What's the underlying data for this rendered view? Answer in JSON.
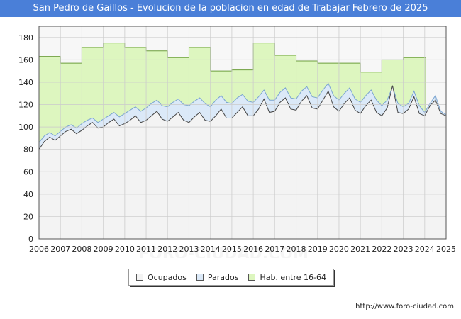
{
  "title": "San Pedro de Gaillos - Evolucion de la poblacion en edad de Trabajar Febrero de 2025",
  "source": "http://www.foro-ciudad.com",
  "watermark": "FORO-CIUDAD.COM",
  "colors": {
    "title_bg": "#4a7fd8",
    "hab_fill": "#ddf6bf",
    "hab_line": "#6d9e3c",
    "parados_fill": "#dbe9f8",
    "parados_line": "#7aa4d0",
    "ocupados_fill": "#f3f3f3",
    "ocupados_line": "#444444",
    "grid": "#cccccc"
  },
  "legend": [
    {
      "label": "Ocupados",
      "color": "#f3f3f3"
    },
    {
      "label": "Parados",
      "color": "#dbe9f8"
    },
    {
      "label": "Hab. entre 16-64",
      "color": "#ddf6bf"
    }
  ],
  "chart_data": {
    "type": "area",
    "title": "San Pedro de Gaillos - Evolucion de la poblacion en edad de Trabajar Febrero de 2025",
    "xlabel": "",
    "ylabel": "",
    "xlim": [
      2006,
      2025
    ],
    "ylim": [
      0,
      190
    ],
    "x_ticks": [
      2006,
      2007,
      2008,
      2009,
      2010,
      2011,
      2012,
      2013,
      2014,
      2015,
      2016,
      2017,
      2018,
      2019,
      2020,
      2021,
      2022,
      2023,
      2024,
      2025
    ],
    "y_ticks": [
      0,
      20,
      40,
      60,
      80,
      100,
      120,
      140,
      160,
      180
    ],
    "grid": true,
    "legend_position": "bottom",
    "series": [
      {
        "name": "Hab. entre 16-64",
        "kind": "step",
        "x": [
          2006,
          2007,
          2008,
          2009,
          2010,
          2011,
          2012,
          2013,
          2014,
          2015,
          2016,
          2017,
          2018,
          2019,
          2020,
          2021,
          2022,
          2023,
          2024.0,
          2024.05
        ],
        "values": [
          163,
          157,
          171,
          175,
          171,
          168,
          162,
          171,
          150,
          151,
          175,
          164,
          159,
          157,
          157,
          149,
          160,
          162,
          162,
          null
        ]
      },
      {
        "name": "Parados",
        "kind": "total",
        "x": [
          2006.0,
          2006.25,
          2006.5,
          2006.75,
          2007.0,
          2007.25,
          2007.5,
          2007.75,
          2008.0,
          2008.25,
          2008.5,
          2008.75,
          2009.0,
          2009.25,
          2009.5,
          2009.75,
          2010.0,
          2010.25,
          2010.5,
          2010.75,
          2011.0,
          2011.25,
          2011.5,
          2011.75,
          2012.0,
          2012.25,
          2012.5,
          2012.75,
          2013.0,
          2013.25,
          2013.5,
          2013.75,
          2014.0,
          2014.25,
          2014.5,
          2014.75,
          2015.0,
          2015.25,
          2015.5,
          2015.75,
          2016.0,
          2016.25,
          2016.5,
          2016.75,
          2017.0,
          2017.25,
          2017.5,
          2017.75,
          2018.0,
          2018.25,
          2018.5,
          2018.75,
          2019.0,
          2019.25,
          2019.5,
          2019.75,
          2020.0,
          2020.25,
          2020.5,
          2020.75,
          2021.0,
          2021.25,
          2021.5,
          2021.75,
          2022.0,
          2022.25,
          2022.5,
          2022.75,
          2023.0,
          2023.25,
          2023.5,
          2023.75,
          2024.0,
          2024.25,
          2024.5,
          2024.75,
          2025.0
        ],
        "values": [
          86,
          92,
          95,
          92,
          96,
          100,
          102,
          99,
          103,
          106,
          108,
          104,
          107,
          110,
          113,
          109,
          112,
          115,
          118,
          114,
          117,
          121,
          124,
          119,
          118,
          122,
          125,
          120,
          119,
          123,
          126,
          121,
          118,
          124,
          128,
          122,
          121,
          126,
          129,
          123,
          122,
          127,
          133,
          124,
          124,
          131,
          135,
          126,
          125,
          132,
          136,
          127,
          126,
          133,
          139,
          128,
          124,
          130,
          135,
          125,
          122,
          128,
          133,
          124,
          119,
          124,
          136,
          121,
          118,
          121,
          132,
          119,
          113,
          121,
          128,
          114,
          111
        ]
      },
      {
        "name": "Ocupados",
        "kind": "total",
        "x": [
          2006.0,
          2006.25,
          2006.5,
          2006.75,
          2007.0,
          2007.25,
          2007.5,
          2007.75,
          2008.0,
          2008.25,
          2008.5,
          2008.75,
          2009.0,
          2009.25,
          2009.5,
          2009.75,
          2010.0,
          2010.25,
          2010.5,
          2010.75,
          2011.0,
          2011.25,
          2011.5,
          2011.75,
          2012.0,
          2012.25,
          2012.5,
          2012.75,
          2013.0,
          2013.25,
          2013.5,
          2013.75,
          2014.0,
          2014.25,
          2014.5,
          2014.75,
          2015.0,
          2015.25,
          2015.5,
          2015.75,
          2016.0,
          2016.25,
          2016.5,
          2016.75,
          2017.0,
          2017.25,
          2017.5,
          2017.75,
          2018.0,
          2018.25,
          2018.5,
          2018.75,
          2019.0,
          2019.25,
          2019.5,
          2019.75,
          2020.0,
          2020.25,
          2020.5,
          2020.75,
          2021.0,
          2021.25,
          2021.5,
          2021.75,
          2022.0,
          2022.25,
          2022.5,
          2022.75,
          2023.0,
          2023.25,
          2023.5,
          2023.75,
          2024.0,
          2024.25,
          2024.5,
          2024.75,
          2025.0
        ],
        "values": [
          80,
          87,
          91,
          88,
          92,
          96,
          98,
          94,
          97,
          101,
          104,
          99,
          100,
          104,
          107,
          101,
          103,
          106,
          110,
          104,
          106,
          110,
          114,
          107,
          105,
          109,
          113,
          106,
          104,
          109,
          113,
          106,
          105,
          110,
          116,
          108,
          108,
          113,
          118,
          110,
          110,
          116,
          125,
          113,
          114,
          122,
          126,
          116,
          115,
          123,
          128,
          117,
          116,
          124,
          132,
          118,
          114,
          121,
          126,
          115,
          112,
          119,
          124,
          113,
          110,
          117,
          137,
          113,
          112,
          116,
          127,
          112,
          110,
          119,
          124,
          112,
          110
        ]
      }
    ]
  }
}
